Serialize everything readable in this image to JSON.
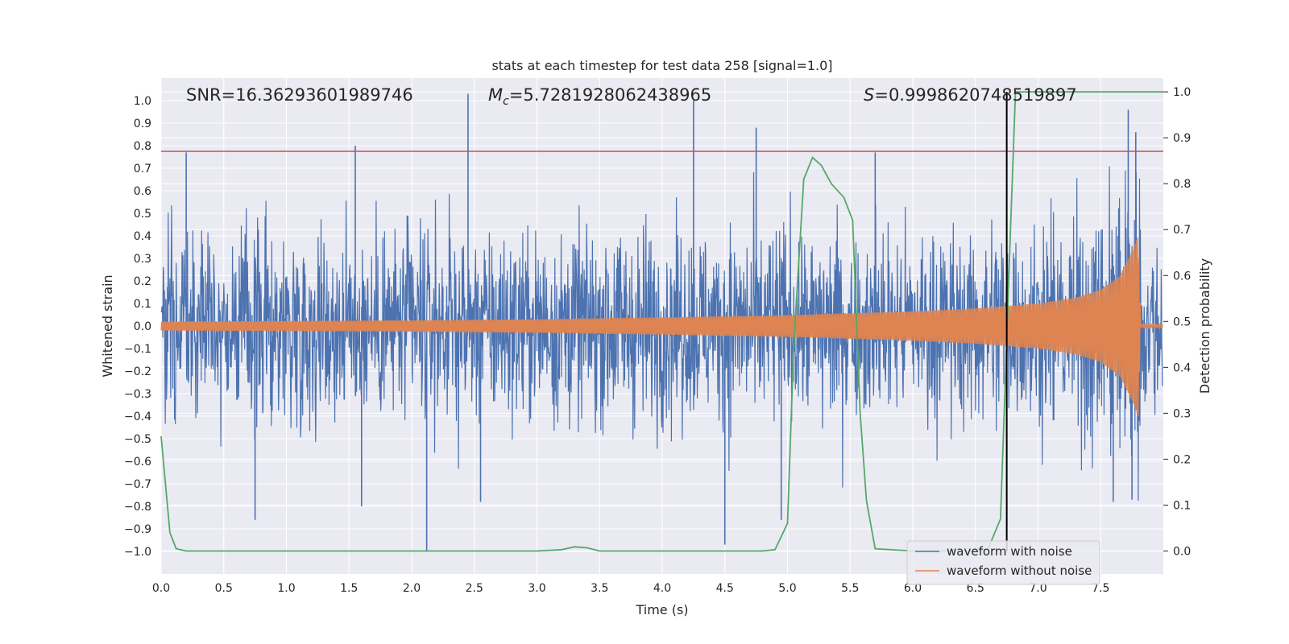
{
  "chart_data": {
    "type": "line",
    "title": "stats at each timestep for test data 258 [signal=1.0]",
    "xlabel": "Time (s)",
    "ylabel_left": "Whitened strain",
    "ylabel_right": "Detection probability",
    "xlim": [
      0.0,
      8.0
    ],
    "ylim_left": [
      -1.1,
      1.1
    ],
    "ylim_right": [
      -0.05,
      1.03
    ],
    "x_ticks": [
      "0.0",
      "0.5",
      "1.0",
      "1.5",
      "2.0",
      "2.5",
      "3.0",
      "3.5",
      "4.0",
      "4.5",
      "5.0",
      "5.5",
      "6.0",
      "6.5",
      "7.0",
      "7.5"
    ],
    "y_left_ticks": [
      "1.0",
      "0.9",
      "0.8",
      "0.7",
      "0.6",
      "0.5",
      "0.4",
      "0.3",
      "0.2",
      "0.1",
      "0.0",
      "−0.1",
      "−0.2",
      "−0.3",
      "−0.4",
      "−0.5",
      "−0.6",
      "−0.7",
      "−0.8",
      "−0.9",
      "−1.0"
    ],
    "y_right_ticks": [
      "1.0",
      "0.9",
      "0.8",
      "0.7",
      "0.6",
      "0.5",
      "0.4",
      "0.3",
      "0.2",
      "0.1",
      "0.0"
    ],
    "annotations": {
      "snr": "SNR=16.36293601989746",
      "mc_symbol": "M",
      "mc_sub": "c",
      "mc_value": "=5.7281928062438965",
      "s_symbol": "S",
      "s_value": "=0.9998620748519897"
    },
    "threshold_line": {
      "y": 0.775,
      "color": "#c44e52"
    },
    "merger_marker": {
      "x": 6.75,
      "color": "#000000"
    },
    "series": [
      {
        "name": "waveform with noise",
        "color": "#4c72b0",
        "axis": "left",
        "envelope_noise_amplitude": 0.38,
        "notable_spikes": [
          {
            "x": 0.2,
            "y": 0.77
          },
          {
            "x": 0.75,
            "y": -0.86
          },
          {
            "x": 1.55,
            "y": 0.8
          },
          {
            "x": 1.6,
            "y": -0.8
          },
          {
            "x": 2.12,
            "y": -1.0
          },
          {
            "x": 2.45,
            "y": 1.03
          },
          {
            "x": 2.55,
            "y": -0.78
          },
          {
            "x": 4.25,
            "y": 1.0
          },
          {
            "x": 4.5,
            "y": -0.97
          },
          {
            "x": 4.75,
            "y": 0.88
          },
          {
            "x": 4.95,
            "y": -0.86
          },
          {
            "x": 5.7,
            "y": 0.77
          },
          {
            "x": 7.6,
            "y": -0.78
          },
          {
            "x": 7.72,
            "y": 0.96
          },
          {
            "x": 7.75,
            "y": -0.77
          },
          {
            "x": 7.78,
            "y": 0.86
          }
        ]
      },
      {
        "name": "waveform without noise",
        "color": "#dd8452",
        "axis": "left",
        "merger_time": 7.8,
        "x": [
          0.0,
          1.0,
          2.0,
          3.0,
          4.0,
          5.0,
          6.0,
          6.5,
          7.0,
          7.3,
          7.5,
          7.65,
          7.75,
          7.8,
          7.82,
          8.0
        ],
        "amplitude": [
          0.02,
          0.022,
          0.025,
          0.03,
          0.038,
          0.048,
          0.065,
          0.078,
          0.1,
          0.125,
          0.16,
          0.22,
          0.33,
          0.4,
          0.005,
          0.005
        ]
      },
      {
        "name": "Detection probability",
        "color": "#55a868",
        "axis": "right",
        "x": [
          0.0,
          0.07,
          0.12,
          0.2,
          1.0,
          2.0,
          3.0,
          3.2,
          3.3,
          3.4,
          3.5,
          4.0,
          4.8,
          4.9,
          5.0,
          5.05,
          5.13,
          5.2,
          5.27,
          5.35,
          5.45,
          5.52,
          5.58,
          5.63,
          5.7,
          6.0,
          6.5,
          6.6,
          6.7,
          6.78,
          6.82,
          7.0,
          7.5,
          8.0
        ],
        "y": [
          0.25,
          0.04,
          0.005,
          0.0,
          0.0,
          0.0,
          0.0,
          0.003,
          0.009,
          0.007,
          0.0,
          0.0,
          0.0,
          0.003,
          0.06,
          0.45,
          0.81,
          0.857,
          0.84,
          0.8,
          0.77,
          0.72,
          0.3,
          0.11,
          0.005,
          0.0,
          0.0,
          0.004,
          0.07,
          0.7,
          1.0,
          1.0,
          1.0,
          1.0
        ]
      }
    ],
    "grid": true,
    "legend_position": "bottom-right"
  }
}
